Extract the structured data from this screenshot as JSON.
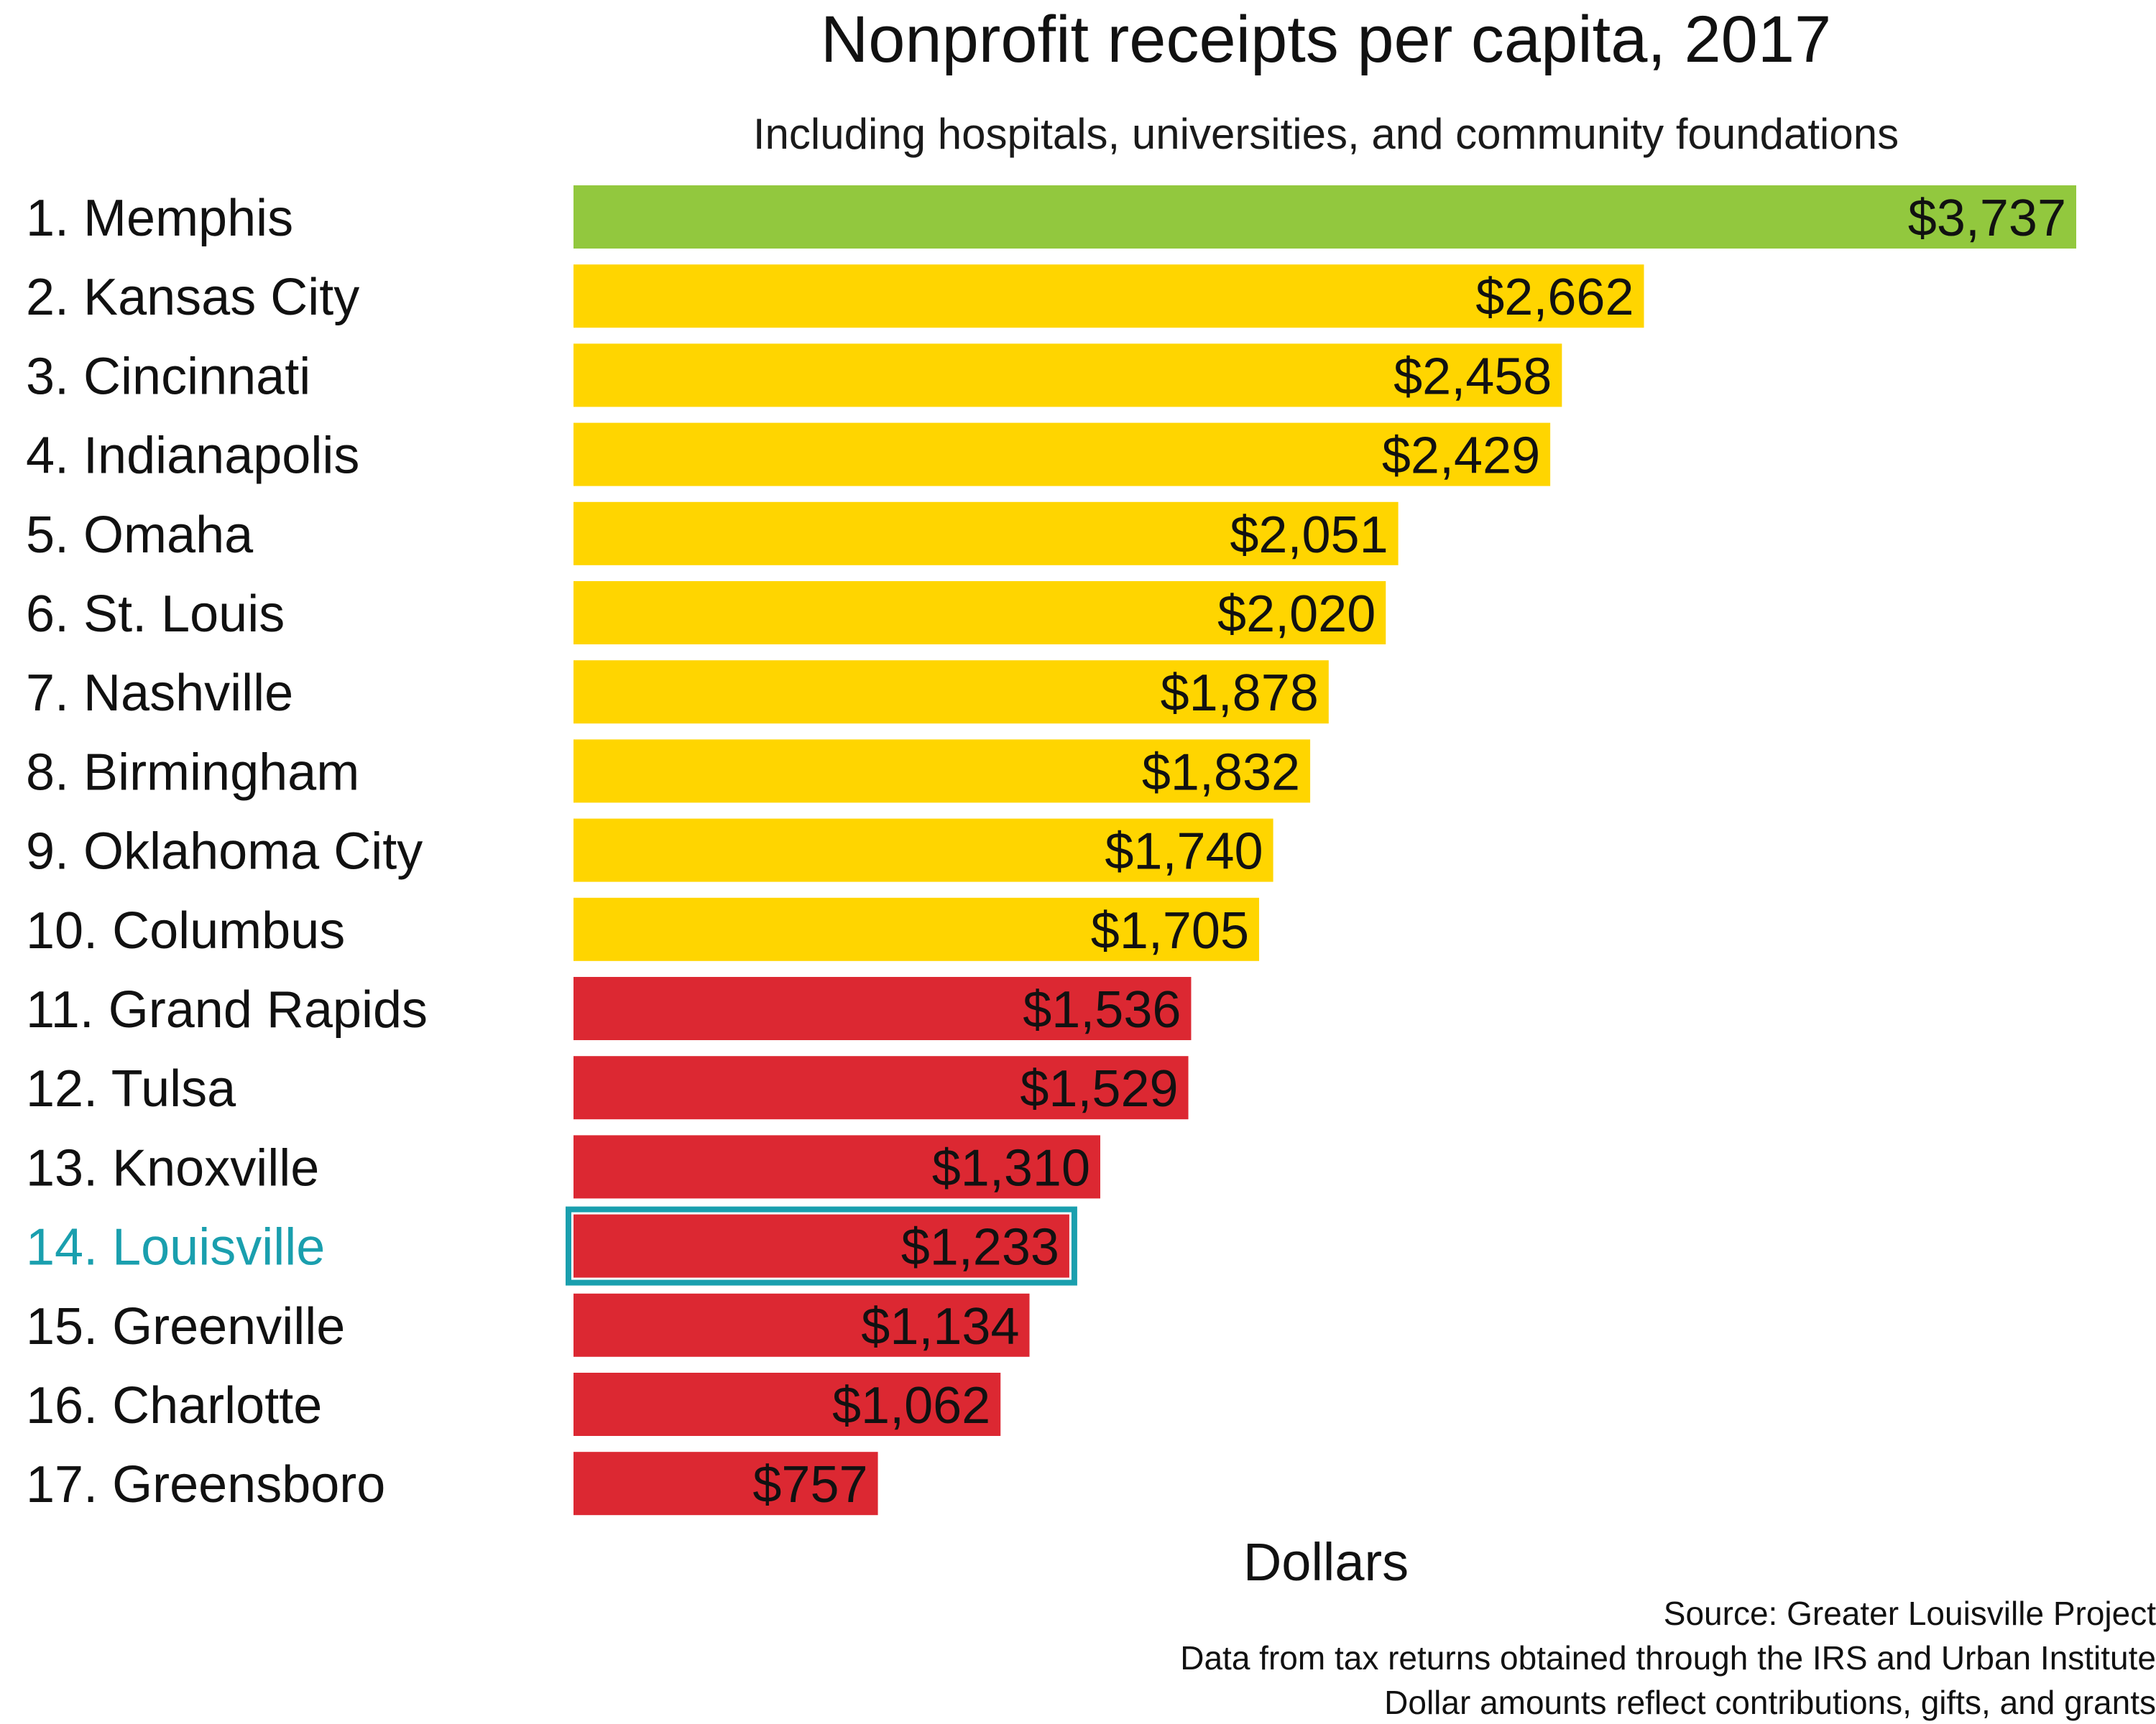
{
  "chart_data": {
    "type": "bar",
    "orientation": "horizontal",
    "title": "Nonprofit receipts per capita, 2017",
    "subtitle": "Including hospitals, universities, and community foundations",
    "xlabel": "Dollars",
    "ylabel": "",
    "grid": false,
    "legend": "none",
    "xlim": [
      0,
      3737
    ],
    "categories": [
      "1. Memphis",
      "2. Kansas City",
      "3. Cincinnati",
      "4. Indianapolis",
      "5. Omaha",
      "6. St. Louis",
      "7. Nashville",
      "8. Birmingham",
      "9. Oklahoma City",
      "10. Columbus",
      "11. Grand Rapids",
      "12. Tulsa",
      "13. Knoxville",
      "14. Louisville",
      "15. Greenville",
      "16. Charlotte",
      "17. Greensboro"
    ],
    "values": [
      3737,
      2662,
      2458,
      2429,
      2051,
      2020,
      1878,
      1832,
      1740,
      1705,
      1536,
      1529,
      1310,
      1233,
      1134,
      1062,
      757
    ],
    "value_labels": [
      "$3,737",
      "$2,662",
      "$2,458",
      "$2,429",
      "$2,051",
      "$2,020",
      "$1,878",
      "$1,832",
      "$1,740",
      "$1,705",
      "$1,536",
      "$1,529",
      "$1,310",
      "$1,233",
      "$1,134",
      "$1,062",
      "$757"
    ],
    "bar_colors": [
      "#92c83e",
      "#ffd500",
      "#ffd500",
      "#ffd500",
      "#ffd500",
      "#ffd500",
      "#ffd500",
      "#ffd500",
      "#ffd500",
      "#ffd500",
      "#dc2832",
      "#dc2832",
      "#dc2832",
      "#dc2832",
      "#dc2832",
      "#dc2832",
      "#dc2832"
    ],
    "highlight_index": 13,
    "highlight_color": "#1a9fae"
  },
  "footnotes": {
    "source": "Source: Greater Louisville Project",
    "data": "Data from tax returns obtained through the IRS and Urban Institute",
    "note": "Dollar amounts reflect contributions, gifts, and grants"
  }
}
